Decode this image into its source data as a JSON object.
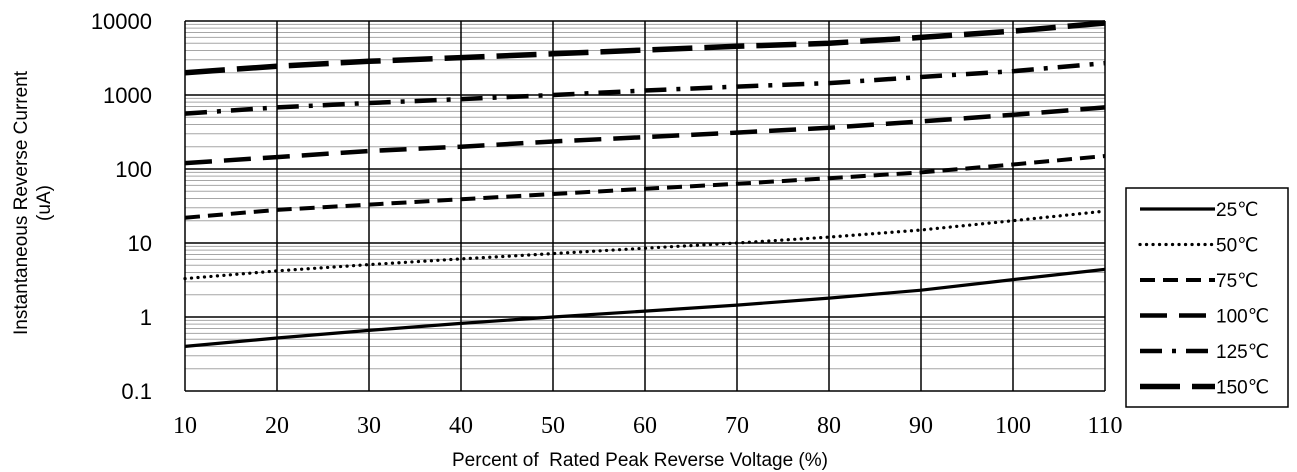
{
  "chart_data": {
    "type": "line",
    "xlabel": "Percent of  Rated Peak Reverse Voltage (%)",
    "ylabel_lines": [
      "Instantaneous Reverse Current",
      "(uA)"
    ],
    "xlim": [
      10,
      110
    ],
    "ylim": [
      0.1,
      10000
    ],
    "yscale": "log",
    "grid": true,
    "legend_position": "right",
    "x_ticks": [
      "10",
      "20",
      "30",
      "40",
      "50",
      "60",
      "70",
      "80",
      "90",
      "100",
      "110"
    ],
    "y_ticks": [
      "0.1",
      "1",
      "10",
      "100",
      "1000",
      "10000"
    ],
    "x": [
      10,
      20,
      30,
      40,
      50,
      60,
      70,
      80,
      90,
      100,
      110
    ],
    "series": [
      {
        "name": "25℃",
        "style": "solid",
        "values": [
          0.4,
          0.52,
          0.66,
          0.82,
          1.0,
          1.2,
          1.45,
          1.8,
          2.3,
          3.2,
          4.4
        ]
      },
      {
        "name": "50℃",
        "style": "dotted",
        "values": [
          3.3,
          4.2,
          5.1,
          6.1,
          7.2,
          8.5,
          10,
          12,
          15,
          20,
          27
        ]
      },
      {
        "name": "75℃",
        "style": "dashed",
        "values": [
          22,
          28,
          33,
          39,
          46,
          54,
          63,
          75,
          90,
          115,
          150
        ]
      },
      {
        "name": "100℃",
        "style": "long-dashed",
        "values": [
          120,
          145,
          175,
          200,
          235,
          270,
          310,
          360,
          440,
          540,
          680
        ]
      },
      {
        "name": "125℃",
        "style": "dash-dot",
        "values": [
          560,
          680,
          780,
          880,
          1000,
          1150,
          1300,
          1450,
          1750,
          2100,
          2700
        ]
      },
      {
        "name": "150℃",
        "style": "long-dash-thick",
        "values": [
          2000,
          2450,
          2850,
          3200,
          3600,
          4050,
          4550,
          5000,
          6000,
          7300,
          9400
        ]
      }
    ]
  }
}
